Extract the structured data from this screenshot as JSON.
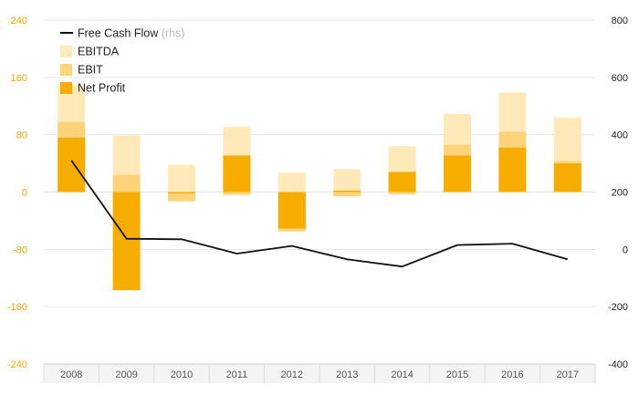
{
  "chart_data": {
    "type": "bar",
    "categories": [
      "2008",
      "2009",
      "2010",
      "2011",
      "2012",
      "2013",
      "2014",
      "2015",
      "2016",
      "2017"
    ],
    "series": [
      {
        "name": "EBITDA",
        "axis": "left",
        "values": [
          149,
          79,
          38,
          91,
          27,
          32,
          64,
          109,
          139,
          104
        ]
      },
      {
        "name": "EBIT",
        "axis": "left",
        "values": [
          98,
          24,
          -13,
          -4,
          -55,
          -6,
          -3,
          66,
          84,
          43
        ]
      },
      {
        "name": "Net Profit",
        "axis": "left",
        "values": [
          76,
          -137,
          -2,
          51,
          -51,
          2,
          28,
          51,
          62,
          40
        ]
      },
      {
        "name": "Free Cash Flow",
        "axis": "right",
        "type": "line",
        "values": [
          310,
          37,
          35,
          -15,
          12,
          -35,
          -60,
          15,
          20,
          -35
        ]
      }
    ],
    "legend": [
      {
        "name": "Free Cash Flow",
        "suffix": "(rhs)",
        "kind": "line"
      },
      {
        "name": "EBITDA",
        "kind": "box"
      },
      {
        "name": "EBIT",
        "kind": "box"
      },
      {
        "name": "Net Profit",
        "kind": "box"
      }
    ],
    "y_left": {
      "ticks": [
        240,
        160,
        80,
        0,
        -80,
        -160,
        -240
      ],
      "ylim": [
        -240,
        240
      ]
    },
    "y_right": {
      "ticks": [
        800,
        600,
        400,
        200,
        0,
        -200,
        -400
      ],
      "ylim": [
        -400,
        800
      ]
    },
    "legend_position": "top-left",
    "grid": true,
    "colors": {
      "ebitda": "#ffe9b8",
      "ebit": "#ffd37a",
      "net_profit": "#f7ad00",
      "fcf": "#111111",
      "grid": "#e6e6e6",
      "left_axis": "#f0a800",
      "right_axis": "#222222"
    }
  }
}
